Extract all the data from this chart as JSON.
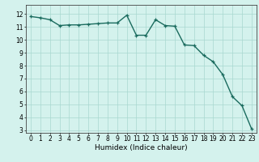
{
  "x": [
    0,
    1,
    2,
    3,
    4,
    5,
    6,
    7,
    8,
    9,
    10,
    11,
    12,
    13,
    14,
    15,
    16,
    17,
    18,
    19,
    20,
    21,
    22,
    23
  ],
  "y": [
    11.8,
    11.7,
    11.55,
    11.1,
    11.15,
    11.15,
    11.2,
    11.25,
    11.3,
    11.3,
    11.9,
    10.35,
    10.35,
    11.55,
    11.1,
    11.05,
    9.6,
    9.55,
    8.8,
    8.3,
    7.3,
    5.6,
    4.9,
    3.1
  ],
  "xlabel": "Humidex (Indice chaleur)",
  "xlim": [
    -0.5,
    23.5
  ],
  "ylim": [
    2.8,
    12.7
  ],
  "yticks": [
    3,
    4,
    5,
    6,
    7,
    8,
    9,
    10,
    11,
    12
  ],
  "xticks": [
    0,
    1,
    2,
    3,
    4,
    5,
    6,
    7,
    8,
    9,
    10,
    11,
    12,
    13,
    14,
    15,
    16,
    17,
    18,
    19,
    20,
    21,
    22,
    23
  ],
  "line_color": "#1a6b5e",
  "bg_color": "#d4f2ed",
  "grid_color": "#a8d8d0",
  "xlabel_fontsize": 6.5,
  "tick_fontsize": 5.5,
  "line_width": 1.0,
  "marker_size": 3.0
}
